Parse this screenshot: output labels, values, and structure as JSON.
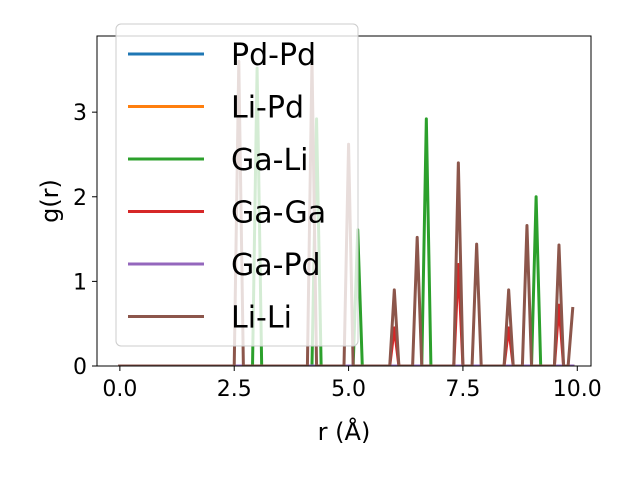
{
  "chart_data": {
    "type": "line",
    "xlabel": "r (Å)",
    "ylabel": "g(r)",
    "xlim": [
      -0.5,
      10.3
    ],
    "ylim": [
      0,
      3.9
    ],
    "xticks": [
      "0.0",
      "2.5",
      "5.0",
      "7.5",
      "10.0"
    ],
    "yticks": [
      "0",
      "1",
      "2",
      "3"
    ],
    "legend_position": "upper-left",
    "grid": false,
    "series": [
      {
        "name": "Pd-Pd",
        "color": "#1f77b4",
        "x": [
          0,
          9.9
        ],
        "y": [
          0,
          0
        ]
      },
      {
        "name": "Li-Pd",
        "color": "#ff7f0e",
        "x": [
          0,
          9.9
        ],
        "y": [
          0,
          0
        ]
      },
      {
        "name": "Ga-Li",
        "color": "#2ca02c",
        "x": [
          0,
          2.8,
          2.9,
          3.0,
          3.1,
          3.2,
          4.2,
          4.3,
          4.4,
          5.1,
          5.2,
          5.3,
          6.6,
          6.7,
          6.8,
          9.0,
          9.1,
          9.2,
          9.9
        ],
        "y": [
          0,
          0,
          0,
          3.52,
          0,
          0,
          0,
          2.92,
          0,
          0,
          1.61,
          0,
          0,
          2.92,
          0,
          0,
          2.0,
          0,
          0
        ]
      },
      {
        "name": "Ga-Ga",
        "color": "#d62728",
        "x": [
          0,
          5.9,
          6.0,
          6.1,
          7.3,
          7.4,
          7.5,
          8.4,
          8.5,
          8.6,
          9.5,
          9.6,
          9.7,
          9.9
        ],
        "y": [
          0,
          0,
          0.45,
          0,
          0,
          1.2,
          0,
          0,
          0.45,
          0,
          0,
          0.72,
          0,
          0
        ]
      },
      {
        "name": "Ga-Pd",
        "color": "#9467bd",
        "x": [
          0,
          9.9
        ],
        "y": [
          0,
          0
        ]
      },
      {
        "name": "Li-Li",
        "color": "#8c564b",
        "x": [
          0,
          2.5,
          2.6,
          2.7,
          4.1,
          4.2,
          4.3,
          4.9,
          5.0,
          5.1,
          5.9,
          6.0,
          6.1,
          6.4,
          6.5,
          6.6,
          7.3,
          7.4,
          7.5,
          7.7,
          7.8,
          7.9,
          8.4,
          8.5,
          8.6,
          8.8,
          8.9,
          9.0,
          9.5,
          9.6,
          9.7,
          9.8,
          9.9
        ],
        "y": [
          0,
          0,
          3.6,
          0,
          0,
          3.62,
          0,
          0,
          2.62,
          0,
          0,
          0.9,
          0,
          0,
          1.52,
          0,
          0,
          2.4,
          0,
          0,
          1.44,
          0,
          0,
          0.9,
          0,
          0,
          1.66,
          0,
          0,
          1.43,
          0,
          0,
          0.68
        ]
      }
    ]
  }
}
